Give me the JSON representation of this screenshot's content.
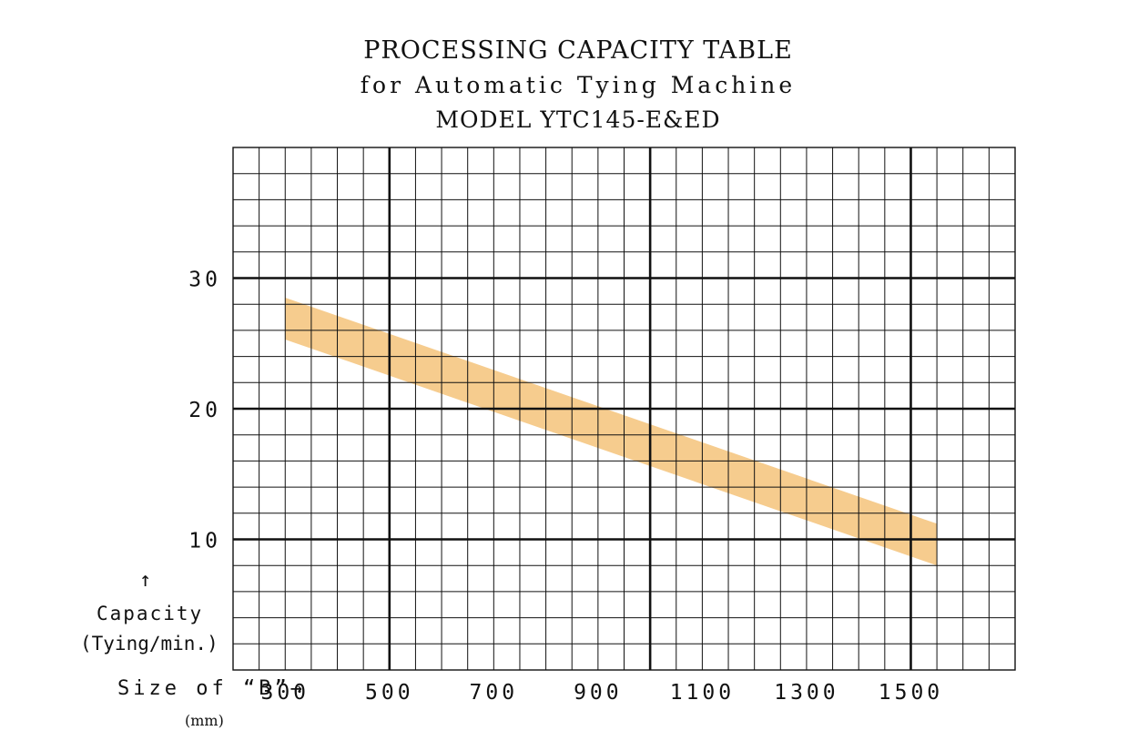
{
  "chart_data": {
    "type": "area",
    "title": "PROCESSING CAPACITY TABLE",
    "subtitle": "for Automatic Tying Machine",
    "model": "MODEL  YTC145-E&ED",
    "xlabel": "Size of  “B”→",
    "x_unit": "(mm)",
    "ylabel": "Capacity",
    "y_unit": "(Tying∕min.)",
    "y_arrow": "↑",
    "xlim": [
      200,
      1700
    ],
    "ylim": [
      0,
      40
    ],
    "x_ticks": [
      "300",
      "500",
      "700",
      "900",
      "1100",
      "1300",
      "1500"
    ],
    "y_ticks": [
      "10",
      "20",
      "30"
    ],
    "grid": true,
    "band_color": "#F6CC8E",
    "series": [
      {
        "x": [
          300,
          1550
        ],
        "upper": [
          28.5,
          11.2
        ],
        "lower": [
          25.3,
          8.0
        ]
      }
    ]
  }
}
